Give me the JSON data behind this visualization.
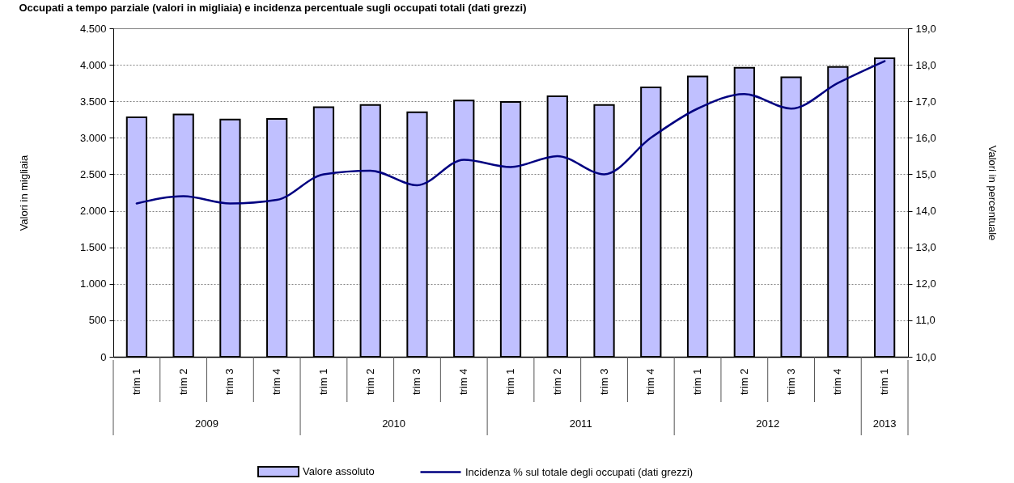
{
  "chart_data": {
    "type": "bar",
    "title": "Occupati a tempo parziale (valori in migliaia) e incidenza percentuale sugli occupati totali (dati grezzi)",
    "ylabel": "Valori in migliaia",
    "y2label": "Valori in percentuale",
    "categories": [
      "trim 1",
      "trim 2",
      "trim 3",
      "trim 4",
      "trim 1",
      "trim 2",
      "trim 3",
      "trim 4",
      "trim 1",
      "trim 2",
      "trim 3",
      "trim 4",
      "trim 1",
      "trim 2",
      "trim 3",
      "trim 4",
      "trim 1"
    ],
    "annotations": [
      "2009",
      "2010",
      "2011",
      "2012",
      "2013"
    ],
    "series": [
      {
        "name": "Valore assoluto",
        "color": "#c0c0ff",
        "values": [
          3280,
          3320,
          3250,
          3260,
          3420,
          3450,
          3350,
          3510,
          3490,
          3570,
          3450,
          3690,
          3840,
          3960,
          3830,
          3970,
          4090
        ]
      },
      {
        "name": "Incidenza % sul totale degli occupati (dati grezzi)",
        "type": "line",
        "axis": "y2",
        "color": "#000080",
        "values": [
          14.2,
          14.4,
          14.2,
          14.3,
          15.0,
          15.1,
          14.7,
          15.4,
          15.2,
          15.5,
          15.0,
          16.0,
          16.8,
          17.2,
          16.8,
          17.5,
          18.1
        ]
      }
    ],
    "ylim": [
      0,
      4500
    ],
    "yticks": [
      0,
      500,
      {
        "value": 1000,
        "label": "1.000"
      },
      {
        "value": 1500,
        "label": "1.500"
      },
      {
        "value": 2000,
        "label": "2.000"
      },
      {
        "value": 2500,
        "label": "2.500"
      },
      {
        "value": 3000,
        "label": "3.000"
      },
      {
        "value": 3500,
        "label": "3.500"
      },
      {
        "value": 4000,
        "label": "4.000"
      },
      {
        "value": 4500,
        "label": "4.500"
      }
    ],
    "y2lim": [
      10,
      19
    ],
    "y2ticks": [
      {
        "value": 10,
        "label": "10,0"
      },
      {
        "value": 11,
        "label": "11,0"
      },
      {
        "value": 12,
        "label": "12,0"
      },
      {
        "value": 13,
        "label": "13,0"
      },
      {
        "value": 14,
        "label": "14,0"
      },
      {
        "value": 15,
        "label": "15,0"
      },
      {
        "value": 16,
        "label": "16,0"
      },
      {
        "value": 17,
        "label": "17,0"
      },
      {
        "value": 18,
        "label": "18,0"
      },
      {
        "value": 19,
        "label": "19,0"
      }
    ],
    "grid": "y",
    "legend": "bottom"
  }
}
